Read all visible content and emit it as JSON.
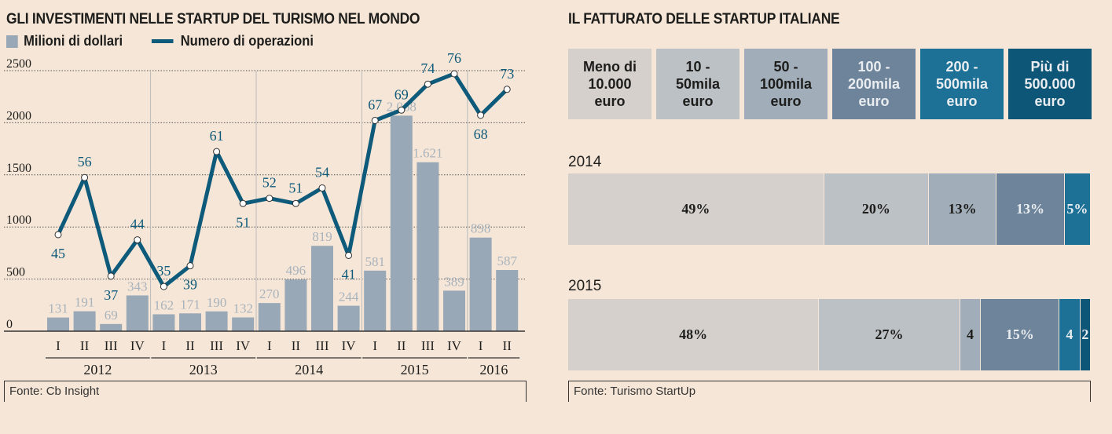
{
  "left": {
    "title": "GLI INVESTIMENTI NELLE STARTUP DEL TURISMO NEL MONDO",
    "source": "Fonte: Cb Insight",
    "chart_data": {
      "type": "bar+line",
      "legend": [
        "Milioni di dollari",
        "Numero di operazioni"
      ],
      "yticks": [
        "0",
        "500",
        "1000",
        "1500",
        "2000",
        "2500"
      ],
      "ylim": [
        0,
        2500
      ],
      "y2lim": [
        26.4,
        76.6
      ],
      "years": [
        {
          "label": "2012",
          "n": 4
        },
        {
          "label": "2013",
          "n": 4
        },
        {
          "label": "2014",
          "n": 4
        },
        {
          "label": "2015",
          "n": 4
        },
        {
          "label": "2016",
          "n": 2
        }
      ],
      "quarters": [
        "I",
        "II",
        "III",
        "IV",
        "I",
        "II",
        "III",
        "IV",
        "I",
        "II",
        "III",
        "IV",
        "I",
        "II",
        "III",
        "IV",
        "I",
        "II"
      ],
      "bars": [
        131,
        191,
        69,
        343,
        162,
        171,
        190,
        132,
        270,
        496,
        819,
        244,
        581,
        2068,
        1621,
        389,
        898,
        587
      ],
      "bar_labels": [
        "131",
        "191",
        "69",
        "343",
        "162",
        "171",
        "190",
        "132",
        "270",
        "496",
        "819",
        "244",
        "581",
        "2.068",
        "1.621",
        "389",
        "898",
        "587"
      ],
      "line": [
        45,
        56,
        37,
        44,
        35,
        39,
        61,
        51,
        52,
        51,
        54,
        41,
        67,
        69,
        74,
        76,
        68,
        73
      ],
      "colors": {
        "bar": "#98a8b6",
        "bar_label": "#a9b3bc",
        "line": "#0d5a7a"
      }
    }
  },
  "right": {
    "title": "IL FATTURATO DELLE STARTUP ITALIANE",
    "source": "Fonte: Turismo StartUp",
    "chart_data": {
      "type": "stacked-bar",
      "categories": [
        "Meno di\n10.000\neuro",
        "10 -\n50mila\neuro",
        "50 -\n100mila\neuro",
        "100 -\n200mila\neuro",
        "200 -\n500mila\neuro",
        "Più di\n500.000\neuro"
      ],
      "colors": [
        "#d5d0cc",
        "#bcc1c5",
        "#a1aeb9",
        "#6e849a",
        "#1e7196",
        "#0d5677"
      ],
      "text_colors": [
        "#1d1d1b",
        "#1d1d1b",
        "#1d1d1b",
        "#e9edf0",
        "#e9edf0",
        "#e9edf0"
      ],
      "series": [
        {
          "name": "2014",
          "values": [
            49,
            20,
            13,
            13,
            5,
            0
          ],
          "labels": [
            "49%",
            "20%",
            "13%",
            "13%",
            "5%",
            ""
          ]
        },
        {
          "name": "2015",
          "values": [
            48,
            27,
            4,
            15,
            4,
            2
          ],
          "labels": [
            "48%",
            "27%",
            "4",
            "15%",
            "4",
            "2"
          ]
        }
      ]
    }
  }
}
